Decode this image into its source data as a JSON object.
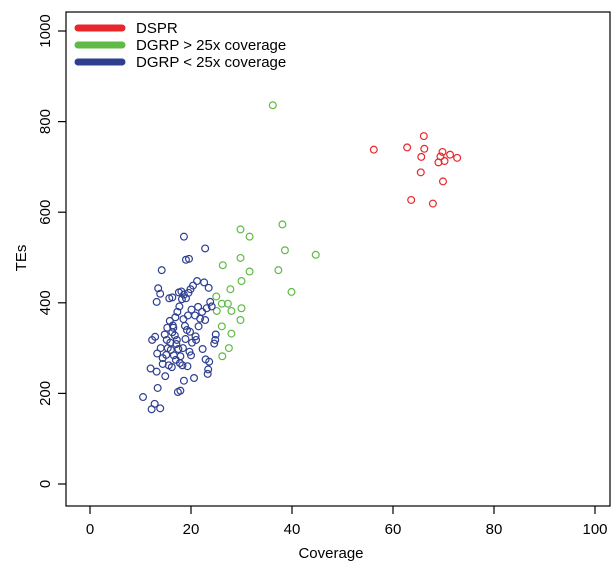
{
  "chart_data": {
    "type": "scatter",
    "title": "",
    "xlabel": "Coverage",
    "ylabel": "TEs",
    "xlim": [
      0,
      100
    ],
    "ylim": [
      0,
      1000
    ],
    "xticks": [
      "0",
      "20",
      "40",
      "60",
      "80",
      "100"
    ],
    "yticks": [
      "0",
      "200",
      "400",
      "600",
      "800",
      "1000"
    ],
    "grid": false,
    "legend_position": "top-left",
    "series": [
      {
        "name": "DSPR",
        "color": "#e8262b",
        "points": [
          [
            56.2,
            738
          ],
          [
            62.8,
            743
          ],
          [
            65.6,
            722
          ],
          [
            66.1,
            768
          ],
          [
            66.2,
            740
          ],
          [
            69.0,
            710
          ],
          [
            69.4,
            723
          ],
          [
            69.8,
            733
          ],
          [
            70.2,
            713
          ],
          [
            71.3,
            727
          ],
          [
            72.7,
            720
          ],
          [
            65.5,
            688
          ],
          [
            69.9,
            668
          ],
          [
            63.6,
            627
          ],
          [
            67.9,
            619
          ]
        ]
      },
      {
        "name": "DGRP > 25x coverage",
        "color": "#5fba46",
        "points": [
          [
            36.2,
            836
          ],
          [
            38.1,
            573
          ],
          [
            29.8,
            562
          ],
          [
            31.6,
            546
          ],
          [
            38.6,
            516
          ],
          [
            44.7,
            506
          ],
          [
            29.8,
            499
          ],
          [
            26.3,
            483
          ],
          [
            31.6,
            469
          ],
          [
            37.3,
            472
          ],
          [
            30.0,
            448
          ],
          [
            27.8,
            430
          ],
          [
            39.9,
            424
          ],
          [
            25.0,
            414
          ],
          [
            26.1,
            398
          ],
          [
            27.3,
            398
          ],
          [
            30.0,
            388
          ],
          [
            25.1,
            382
          ],
          [
            28.0,
            382
          ],
          [
            29.8,
            362
          ],
          [
            26.1,
            348
          ],
          [
            28.0,
            332
          ],
          [
            27.5,
            300
          ],
          [
            26.2,
            282
          ]
        ]
      },
      {
        "name": "DGRP < 25x coverage",
        "color": "#2e3f8f",
        "points": [
          [
            10.5,
            192
          ],
          [
            12.2,
            165
          ],
          [
            12.8,
            177
          ],
          [
            13.9,
            167
          ],
          [
            13.4,
            212
          ],
          [
            12.0,
            255
          ],
          [
            13.2,
            248
          ],
          [
            14.4,
            265
          ],
          [
            14.9,
            238
          ],
          [
            15.6,
            262
          ],
          [
            16.2,
            258
          ],
          [
            17.4,
            203
          ],
          [
            17.9,
            206
          ],
          [
            18.6,
            228
          ],
          [
            19.3,
            260
          ],
          [
            20.6,
            234
          ],
          [
            20.0,
            284
          ],
          [
            22.3,
            298
          ],
          [
            22.9,
            275
          ],
          [
            23.6,
            270
          ],
          [
            23.4,
            253
          ],
          [
            23.3,
            243
          ],
          [
            24.8,
            318
          ],
          [
            24.9,
            330
          ],
          [
            24.6,
            310
          ],
          [
            12.3,
            318
          ],
          [
            12.9,
            325
          ],
          [
            13.3,
            288
          ],
          [
            14.0,
            300
          ],
          [
            14.4,
            278
          ],
          [
            15.1,
            285
          ],
          [
            15.4,
            300
          ],
          [
            15.9,
            312
          ],
          [
            16.3,
            335
          ],
          [
            16.8,
            328
          ],
          [
            17.2,
            318
          ],
          [
            17.5,
            298
          ],
          [
            17.9,
            282
          ],
          [
            18.4,
            300
          ],
          [
            18.9,
            320
          ],
          [
            19.2,
            340
          ],
          [
            19.8,
            336
          ],
          [
            20.2,
            312
          ],
          [
            20.9,
            326
          ],
          [
            21.5,
            348
          ],
          [
            21.8,
            365
          ],
          [
            22.2,
            380
          ],
          [
            22.8,
            362
          ],
          [
            23.1,
            388
          ],
          [
            23.8,
            402
          ],
          [
            24.1,
            392
          ],
          [
            15.3,
            345
          ],
          [
            15.8,
            360
          ],
          [
            16.4,
            350
          ],
          [
            16.9,
            368
          ],
          [
            17.3,
            380
          ],
          [
            17.7,
            392
          ],
          [
            18.2,
            408
          ],
          [
            18.6,
            418
          ],
          [
            19.0,
            410
          ],
          [
            19.5,
            422
          ],
          [
            19.9,
            430
          ],
          [
            20.4,
            438
          ],
          [
            21.2,
            448
          ],
          [
            22.6,
            445
          ],
          [
            23.5,
            433
          ],
          [
            15.7,
            410
          ],
          [
            16.3,
            412
          ],
          [
            17.6,
            423
          ],
          [
            18.1,
            425
          ],
          [
            16.0,
            296
          ],
          [
            16.6,
            284
          ],
          [
            17.0,
            274
          ],
          [
            17.8,
            267
          ],
          [
            18.3,
            262
          ],
          [
            18.8,
            349
          ],
          [
            19.4,
            372
          ],
          [
            20.1,
            385
          ],
          [
            13.2,
            402
          ],
          [
            13.5,
            432
          ],
          [
            13.9,
            420
          ],
          [
            14.2,
            472
          ],
          [
            18.6,
            546
          ],
          [
            19.0,
            495
          ],
          [
            19.6,
            497
          ],
          [
            22.8,
            520
          ],
          [
            20.8,
            372
          ],
          [
            21.4,
            391
          ],
          [
            14.8,
            330
          ],
          [
            15.2,
            318
          ],
          [
            17.1,
            309
          ],
          [
            19.7,
            292
          ],
          [
            21.0,
            318
          ],
          [
            16.5,
            345
          ],
          [
            18.5,
            364
          ]
        ]
      }
    ]
  }
}
